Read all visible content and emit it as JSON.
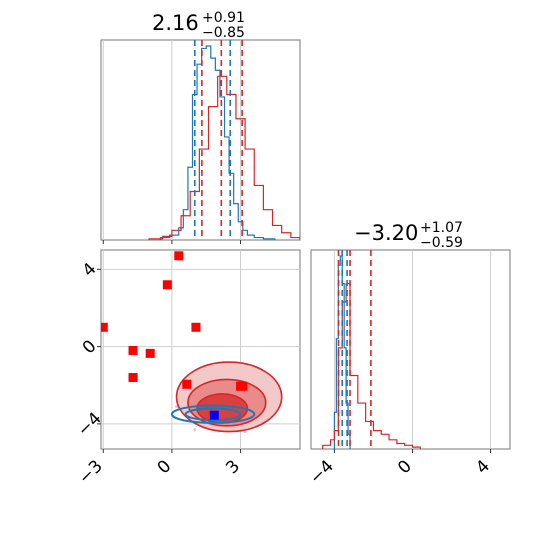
{
  "chart_data": [
    {
      "type": "histogram",
      "panel": "top-left",
      "parameter_index": 0,
      "title": {
        "value": "2.16",
        "plus": "+0.91",
        "minus": "−0.85"
      },
      "xlim": [
        -3.1,
        5.6
      ],
      "grid": true,
      "series": [
        {
          "color": "#1f77b4",
          "quantiles": [
            1.0,
            2.55
          ],
          "bins": [
            -0.5,
            -0.1,
            0.3,
            0.5,
            0.7,
            0.9,
            1.1,
            1.3,
            1.5,
            1.7,
            1.9,
            2.1,
            2.3,
            2.5,
            2.7,
            2.9,
            3.1,
            3.3,
            3.6,
            4.0,
            4.5
          ],
          "values": [
            2,
            4,
            10,
            25,
            60,
            120,
            145,
            158,
            160,
            150,
            140,
            118,
            85,
            55,
            30,
            15,
            8,
            4,
            2,
            1
          ]
        },
        {
          "color": "#d62728",
          "quantiles": [
            1.31,
            3.07
          ],
          "bins": [
            -1.0,
            -0.4,
            0.0,
            0.4,
            0.8,
            1.2,
            1.6,
            2.0,
            2.4,
            2.8,
            3.2,
            3.6,
            4.0,
            4.4,
            4.8,
            5.2,
            5.6
          ],
          "values": [
            1,
            3,
            8,
            20,
            40,
            75,
            110,
            135,
            120,
            100,
            75,
            45,
            25,
            12,
            6,
            2
          ]
        }
      ],
      "quantile_lines": [
        {
          "x": 1.0,
          "color": "#1f77b4"
        },
        {
          "x": 1.31,
          "color": "#d62728"
        },
        {
          "x": 2.16,
          "color": "#d62728"
        },
        {
          "x": 2.55,
          "color": "#1f77b4"
        },
        {
          "x": 3.07,
          "color": "#d62728"
        }
      ]
    },
    {
      "type": "histogram",
      "panel": "bottom-right",
      "parameter_index": 1,
      "title": {
        "value": "−3.20",
        "plus": "+1.07",
        "minus": "−0.59"
      },
      "xlim": [
        -5.2,
        5.0
      ],
      "xticks": [
        -4,
        0,
        4
      ],
      "xtick_labels": [
        "−4",
        "0",
        "4"
      ],
      "grid": true,
      "series": [
        {
          "color": "#1f77b4",
          "bins": [
            -4.0,
            -3.9,
            -3.8,
            -3.7,
            -3.6,
            -3.5,
            -3.4,
            -3.3,
            -3.2
          ],
          "values": [
            20,
            60,
            100,
            105,
            90,
            55,
            25,
            8
          ]
        },
        {
          "color": "#d62728",
          "bins": [
            -4.6,
            -4.2,
            -4.0,
            -3.8,
            -3.6,
            -3.4,
            -3.2,
            -2.8,
            -2.4,
            -2.0,
            -1.6,
            -1.2,
            -0.8,
            -0.4,
            0.0,
            0.4
          ],
          "values": [
            2,
            5,
            10,
            55,
            80,
            90,
            40,
            25,
            15,
            10,
            8,
            5,
            3,
            2,
            1
          ]
        }
      ],
      "quantile_lines": [
        {
          "x": -3.79,
          "color": "#d62728"
        },
        {
          "x": -3.2,
          "color": "#d62728"
        },
        {
          "x": -2.13,
          "color": "#d62728"
        },
        {
          "x": -3.6,
          "color": "#1f77b4"
        },
        {
          "x": -3.35,
          "color": "#1f77b4"
        }
      ]
    },
    {
      "type": "contour",
      "panel": "bottom-left",
      "xlim": [
        -3.1,
        5.6
      ],
      "ylim": [
        -5.3,
        5.0
      ],
      "xticks": [
        -3,
        0,
        3
      ],
      "xtick_labels": [
        "−3",
        "0",
        "3"
      ],
      "yticks": [
        -4,
        0,
        4
      ],
      "ytick_labels": [
        "−4",
        "0",
        "4"
      ],
      "grid": true,
      "red_contour_levels": [
        {
          "fill": "#f2c8c8",
          "center": [
            2.5,
            -2.6
          ],
          "rx": 2.3,
          "ry": 1.8
        },
        {
          "fill": "#e98b8b",
          "center": [
            2.4,
            -2.9
          ],
          "rx": 1.7,
          "ry": 1.2
        },
        {
          "fill": "#d9403f",
          "center": [
            2.2,
            -3.2
          ],
          "rx": 1.1,
          "ry": 0.75
        }
      ],
      "blue_contour_levels": [
        {
          "center": [
            1.8,
            -3.5
          ],
          "rx": 1.8,
          "ry": 0.45
        },
        {
          "center": [
            1.8,
            -3.5
          ],
          "rx": 1.2,
          "ry": 0.3
        }
      ],
      "red_squares": [
        {
          "x": -3.0,
          "y": 1.0
        },
        {
          "x": -1.7,
          "y": -0.2
        },
        {
          "x": -0.95,
          "y": -0.35
        },
        {
          "x": -1.7,
          "y": -1.6
        },
        {
          "x": 0.3,
          "y": 4.7
        },
        {
          "x": -0.2,
          "y": 3.2
        },
        {
          "x": 1.05,
          "y": 1.0
        },
        {
          "x": 0.65,
          "y": -1.95
        },
        {
          "x": 3.0,
          "y": -2.05
        },
        {
          "x": 3.1,
          "y": -2.05
        }
      ],
      "blue_square": {
        "x": 1.85,
        "y": -3.55
      }
    }
  ]
}
